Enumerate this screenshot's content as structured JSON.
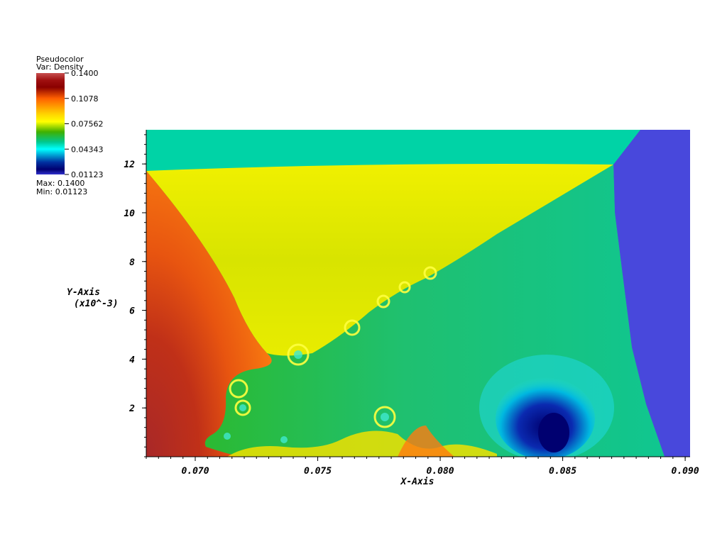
{
  "legend": {
    "title_line1": "Pseudocolor",
    "title_line2": "Var: Density",
    "ticks": [
      "0.1400",
      "0.1078",
      "0.07562",
      "0.04343",
      "0.01123"
    ],
    "max_label": "Max: 0.1400",
    "min_label": "Min: 0.01123",
    "colors": [
      "#b84040",
      "#8b0000",
      "#ff7a00",
      "#ffff00",
      "#39b500",
      "#00e0d8",
      "#000080",
      "#3030cc"
    ]
  },
  "chart_data": {
    "type": "heatmap",
    "variable": "Density",
    "value_range": [
      0.01123,
      0.14
    ],
    "xlabel": "X-Axis",
    "ylabel": "Y-Axis",
    "ylabel_unit": "(x10^-3)",
    "xlim": [
      0.068,
      0.0902
    ],
    "ylim": [
      0,
      13.4
    ],
    "xticks": [
      {
        "value": 0.07,
        "label": "0.070"
      },
      {
        "value": 0.075,
        "label": "0.075"
      },
      {
        "value": 0.08,
        "label": "0.080"
      },
      {
        "value": 0.085,
        "label": "0.085"
      },
      {
        "value": 0.09,
        "label": "0.090"
      }
    ],
    "yticks": [
      {
        "value": 2,
        "label": "2"
      },
      {
        "value": 4,
        "label": "4"
      },
      {
        "value": 6,
        "label": "6"
      },
      {
        "value": 8,
        "label": "8"
      },
      {
        "value": 10,
        "label": "10"
      },
      {
        "value": 12,
        "label": "12"
      }
    ],
    "regions": [
      {
        "region": "top strip",
        "density": 0.058,
        "color": "#00d3a6"
      },
      {
        "region": "right region",
        "density": 0.012,
        "color": "#4848dc"
      },
      {
        "region": "upper wedge",
        "density": 0.077,
        "color": "#e2e800"
      },
      {
        "region": "middle region",
        "density": 0.062,
        "color": "#1fc57f"
      },
      {
        "region": "left region",
        "density": 0.11,
        "color": "#ee5a10"
      },
      {
        "region": "bottom-left corner",
        "density": 0.125,
        "color": "#a82828"
      },
      {
        "region": "bottom-right bubble",
        "density": 0.02,
        "color": "#10108a"
      }
    ]
  }
}
